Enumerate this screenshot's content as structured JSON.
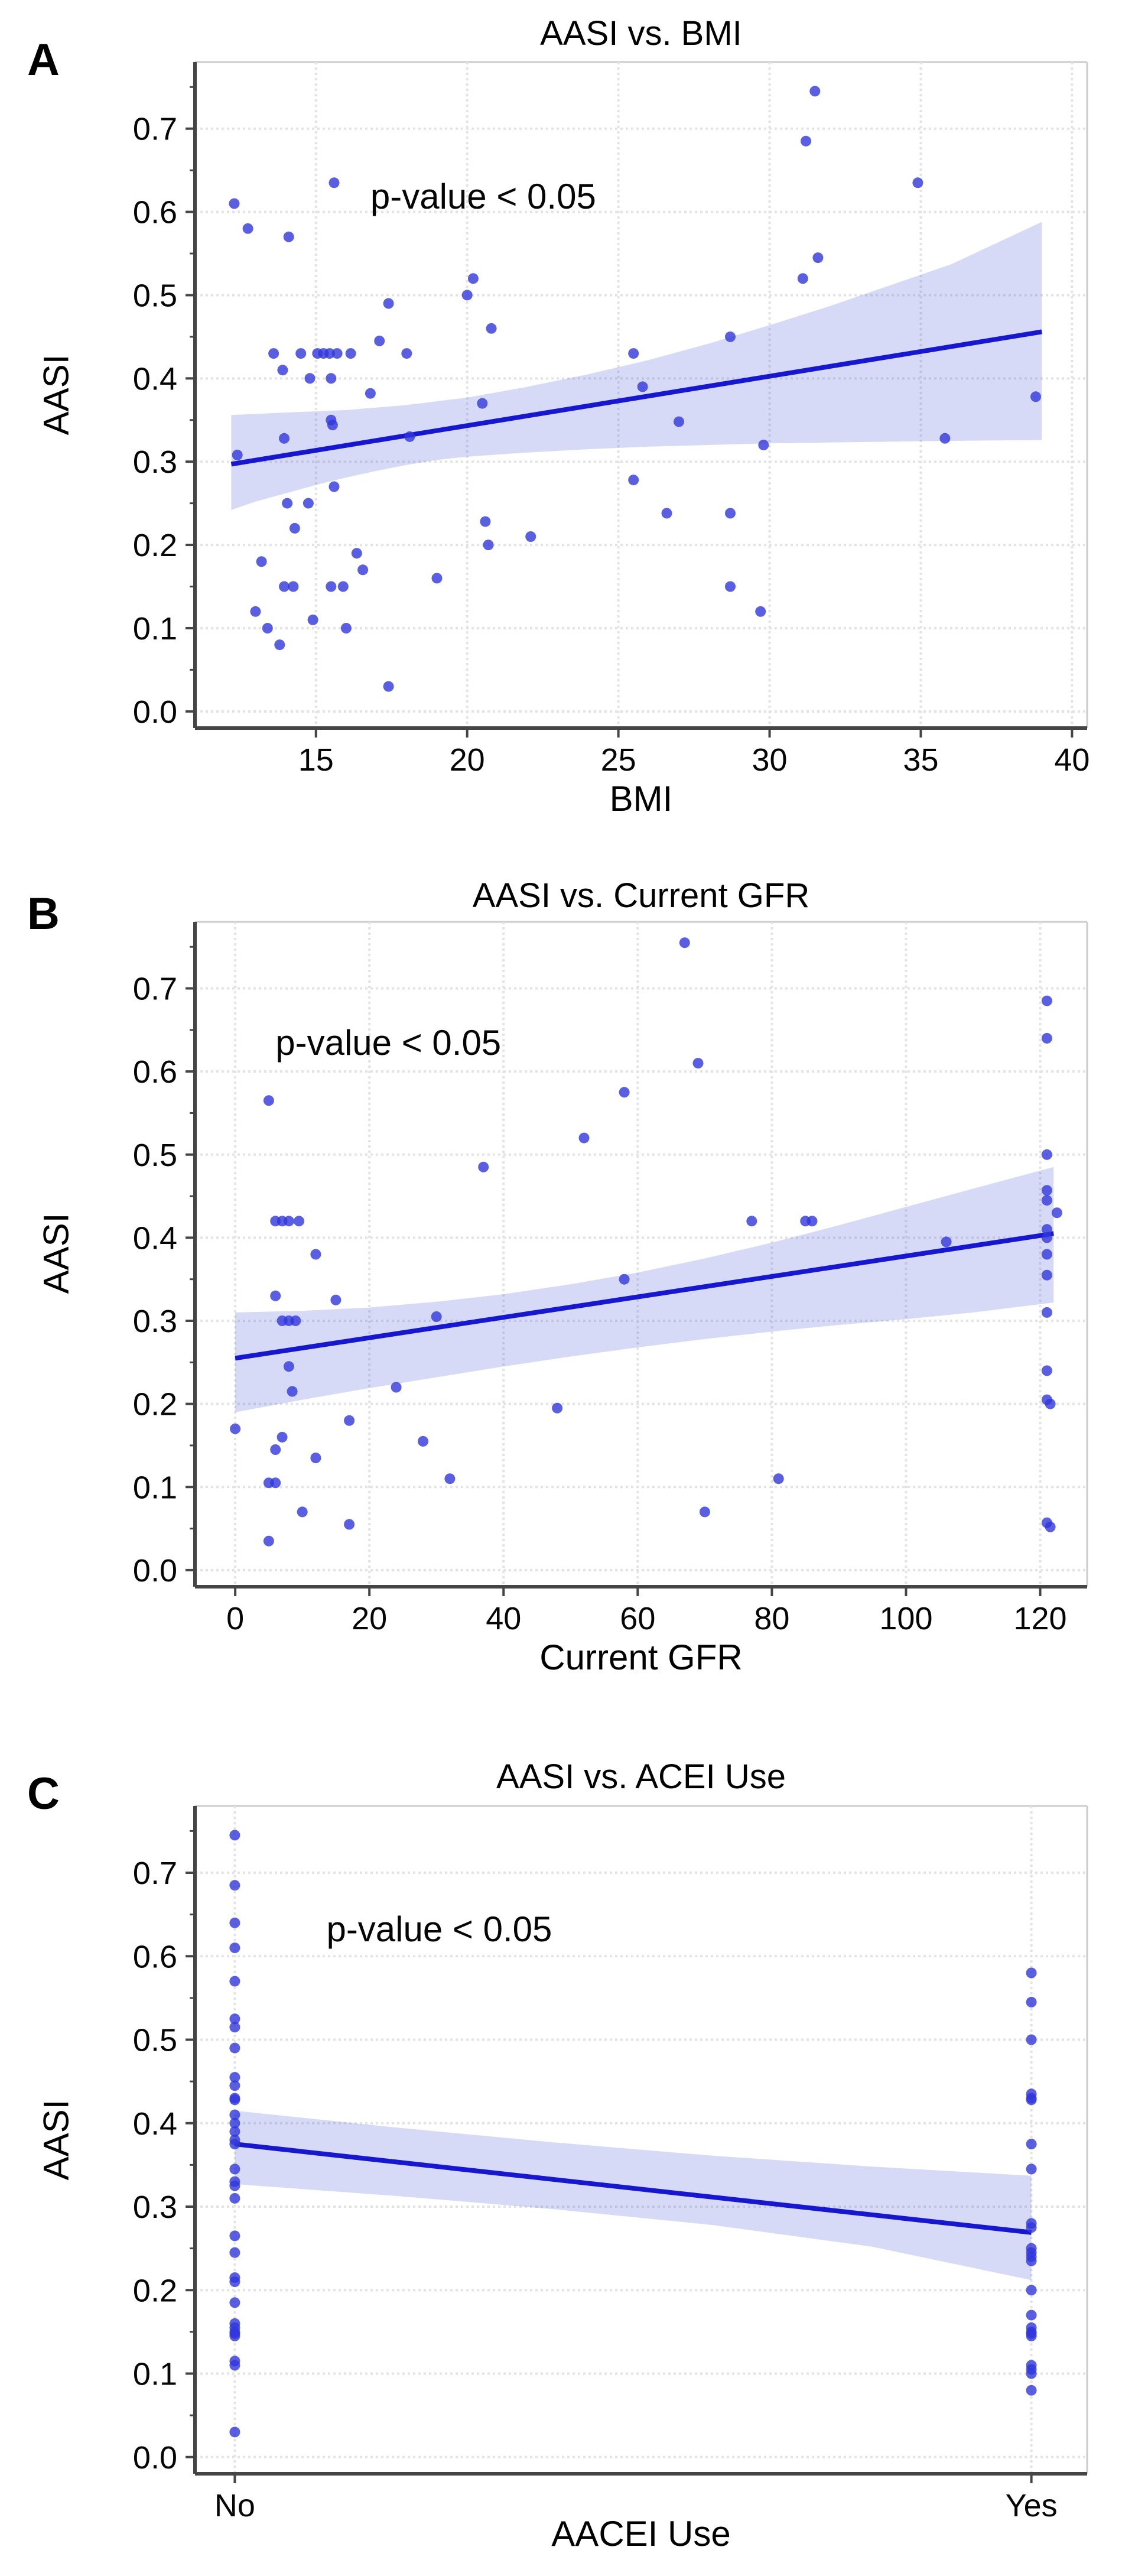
{
  "colors": {
    "point": "rgba(49,55,219,0.8)",
    "regression_line": "#1717cf",
    "ci_band": "rgba(75,85,215,0.22)",
    "grid": "#e3e3e3",
    "spine_dark": "#454545",
    "spine_light": "#cccccc",
    "text": "#050505"
  },
  "chart_data": [
    {
      "type": "scatter",
      "panel_label": "A",
      "title": "AASI vs. BMI",
      "xlabel": "BMI",
      "ylabel": "AASI",
      "annotation": "p-value < 0.05",
      "annotation_pos": [
        16.8,
        0.604
      ],
      "xlim": [
        11,
        40.5
      ],
      "ylim": [
        -0.02,
        0.78
      ],
      "grid": true,
      "legend": "none",
      "xticks": [
        {
          "v": 15,
          "label": "15"
        },
        {
          "v": 20,
          "label": "20"
        },
        {
          "v": 25,
          "label": "25"
        },
        {
          "v": 30,
          "label": "30"
        },
        {
          "v": 35,
          "label": "35"
        },
        {
          "v": 40,
          "label": "40"
        }
      ],
      "yticks": [
        {
          "v": 0.0,
          "label": "0.0"
        },
        {
          "v": 0.1,
          "label": "0.1"
        },
        {
          "v": 0.2,
          "label": "0.2"
        },
        {
          "v": 0.3,
          "label": "0.3"
        },
        {
          "v": 0.4,
          "label": "0.4"
        },
        {
          "v": 0.5,
          "label": "0.5"
        },
        {
          "v": 0.6,
          "label": "0.6"
        },
        {
          "v": 0.7,
          "label": "0.7"
        }
      ],
      "points": [
        [
          12.3,
          0.61
        ],
        [
          12.75,
          0.58
        ],
        [
          14.1,
          0.57
        ],
        [
          15.6,
          0.635
        ],
        [
          31.5,
          0.745
        ],
        [
          31.2,
          0.685
        ],
        [
          34.9,
          0.635
        ],
        [
          31.1,
          0.52
        ],
        [
          31.6,
          0.545
        ],
        [
          20.2,
          0.52
        ],
        [
          20.0,
          0.5
        ],
        [
          17.4,
          0.49
        ],
        [
          20.8,
          0.46
        ],
        [
          17.1,
          0.445
        ],
        [
          13.6,
          0.43
        ],
        [
          14.5,
          0.43
        ],
        [
          15.05,
          0.43
        ],
        [
          15.25,
          0.43
        ],
        [
          15.45,
          0.43
        ],
        [
          15.7,
          0.43
        ],
        [
          16.15,
          0.43
        ],
        [
          18.0,
          0.43
        ],
        [
          25.5,
          0.43
        ],
        [
          13.9,
          0.41
        ],
        [
          14.8,
          0.4
        ],
        [
          15.5,
          0.4
        ],
        [
          25.8,
          0.39
        ],
        [
          28.7,
          0.45
        ],
        [
          16.8,
          0.382
        ],
        [
          20.5,
          0.37
        ],
        [
          38.8,
          0.378
        ],
        [
          27.0,
          0.348
        ],
        [
          15.5,
          0.35
        ],
        [
          15.55,
          0.344
        ],
        [
          18.1,
          0.33
        ],
        [
          13.95,
          0.328
        ],
        [
          35.8,
          0.328
        ],
        [
          29.8,
          0.32
        ],
        [
          12.4,
          0.308
        ],
        [
          15.6,
          0.27
        ],
        [
          25.5,
          0.278
        ],
        [
          14.05,
          0.25
        ],
        [
          14.75,
          0.25
        ],
        [
          14.3,
          0.22
        ],
        [
          20.6,
          0.228
        ],
        [
          26.6,
          0.238
        ],
        [
          28.7,
          0.238
        ],
        [
          22.1,
          0.21
        ],
        [
          20.7,
          0.2
        ],
        [
          16.35,
          0.19
        ],
        [
          13.2,
          0.18
        ],
        [
          16.55,
          0.17
        ],
        [
          19.0,
          0.16
        ],
        [
          13.95,
          0.15
        ],
        [
          14.25,
          0.15
        ],
        [
          15.5,
          0.15
        ],
        [
          15.9,
          0.15
        ],
        [
          28.7,
          0.15
        ],
        [
          13.0,
          0.12
        ],
        [
          29.7,
          0.12
        ],
        [
          14.9,
          0.11
        ],
        [
          13.4,
          0.1
        ],
        [
          16.0,
          0.1
        ],
        [
          13.8,
          0.08
        ],
        [
          17.4,
          0.03
        ]
      ],
      "regression": {
        "x": [
          12.2,
          39.0
        ],
        "y": [
          0.297,
          0.456
        ]
      },
      "ci_upper": [
        [
          12.2,
          0.356
        ],
        [
          14,
          0.359
        ],
        [
          16,
          0.362
        ],
        [
          18,
          0.368
        ],
        [
          20,
          0.377
        ],
        [
          22,
          0.39
        ],
        [
          24,
          0.405
        ],
        [
          26,
          0.422
        ],
        [
          28,
          0.442
        ],
        [
          30,
          0.464
        ],
        [
          32,
          0.487
        ],
        [
          34,
          0.512
        ],
        [
          36,
          0.537
        ],
        [
          39,
          0.588
        ]
      ],
      "ci_lower": [
        [
          12.2,
          0.242
        ],
        [
          13,
          0.252
        ],
        [
          14,
          0.262
        ],
        [
          15,
          0.272
        ],
        [
          16,
          0.281
        ],
        [
          17,
          0.289
        ],
        [
          18,
          0.296
        ],
        [
          19,
          0.302
        ],
        [
          20,
          0.306
        ],
        [
          22,
          0.311
        ],
        [
          24,
          0.315
        ],
        [
          26,
          0.318
        ],
        [
          28,
          0.32
        ],
        [
          30,
          0.322
        ],
        [
          32,
          0.323
        ],
        [
          34,
          0.324
        ],
        [
          36,
          0.325
        ],
        [
          39,
          0.326
        ]
      ]
    },
    {
      "type": "scatter",
      "panel_label": "B",
      "title": "AASI vs. Current GFR",
      "xlabel": "Current GFR",
      "ylabel": "AASI",
      "annotation": "p-value < 0.05",
      "annotation_pos": [
        6,
        0.62
      ],
      "xlim": [
        -6,
        127
      ],
      "ylim": [
        -0.02,
        0.78
      ],
      "grid": true,
      "legend": "none",
      "xticks": [
        {
          "v": 0,
          "label": "0"
        },
        {
          "v": 20,
          "label": "20"
        },
        {
          "v": 40,
          "label": "40"
        },
        {
          "v": 60,
          "label": "60"
        },
        {
          "v": 80,
          "label": "80"
        },
        {
          "v": 100,
          "label": "100"
        },
        {
          "v": 120,
          "label": "120"
        }
      ],
      "yticks": [
        {
          "v": 0.0,
          "label": "0.0"
        },
        {
          "v": 0.1,
          "label": "0.1"
        },
        {
          "v": 0.2,
          "label": "0.2"
        },
        {
          "v": 0.3,
          "label": "0.3"
        },
        {
          "v": 0.4,
          "label": "0.4"
        },
        {
          "v": 0.5,
          "label": "0.5"
        },
        {
          "v": 0.6,
          "label": "0.6"
        },
        {
          "v": 0.7,
          "label": "0.7"
        }
      ],
      "points": [
        [
          67,
          0.755
        ],
        [
          121,
          0.685
        ],
        [
          121,
          0.64
        ],
        [
          69,
          0.61
        ],
        [
          58,
          0.575
        ],
        [
          5,
          0.565
        ],
        [
          52,
          0.52
        ],
        [
          37,
          0.485
        ],
        [
          121,
          0.5
        ],
        [
          121,
          0.457
        ],
        [
          121,
          0.445
        ],
        [
          122.5,
          0.43
        ],
        [
          6,
          0.42
        ],
        [
          7,
          0.42
        ],
        [
          8,
          0.42
        ],
        [
          9.5,
          0.42
        ],
        [
          77,
          0.42
        ],
        [
          85,
          0.42
        ],
        [
          86,
          0.42
        ],
        [
          121,
          0.41
        ],
        [
          121,
          0.4
        ],
        [
          12,
          0.38
        ],
        [
          106,
          0.395
        ],
        [
          121,
          0.38
        ],
        [
          121,
          0.355
        ],
        [
          58,
          0.35
        ],
        [
          6,
          0.33
        ],
        [
          15,
          0.325
        ],
        [
          121,
          0.31
        ],
        [
          7,
          0.3
        ],
        [
          8,
          0.3
        ],
        [
          9,
          0.3
        ],
        [
          30,
          0.305
        ],
        [
          121,
          0.24
        ],
        [
          8,
          0.245
        ],
        [
          8.5,
          0.215
        ],
        [
          24,
          0.22
        ],
        [
          48,
          0.195
        ],
        [
          121,
          0.205
        ],
        [
          121.5,
          0.2
        ],
        [
          17,
          0.18
        ],
        [
          0,
          0.17
        ],
        [
          7,
          0.16
        ],
        [
          28,
          0.155
        ],
        [
          6,
          0.145
        ],
        [
          12,
          0.135
        ],
        [
          5,
          0.105
        ],
        [
          6,
          0.105
        ],
        [
          32,
          0.11
        ],
        [
          81,
          0.11
        ],
        [
          10,
          0.07
        ],
        [
          70,
          0.07
        ],
        [
          17,
          0.055
        ],
        [
          121,
          0.057
        ],
        [
          121.5,
          0.052
        ],
        [
          5,
          0.035
        ]
      ],
      "regression": {
        "x": [
          0,
          122
        ],
        "y": [
          0.255,
          0.405
        ]
      },
      "ci_upper": [
        [
          0,
          0.31
        ],
        [
          10,
          0.312
        ],
        [
          20,
          0.316
        ],
        [
          30,
          0.323
        ],
        [
          40,
          0.332
        ],
        [
          50,
          0.344
        ],
        [
          60,
          0.358
        ],
        [
          70,
          0.375
        ],
        [
          80,
          0.394
        ],
        [
          90,
          0.415
        ],
        [
          100,
          0.437
        ],
        [
          110,
          0.459
        ],
        [
          122,
          0.485
        ]
      ],
      "ci_lower": [
        [
          0,
          0.19
        ],
        [
          10,
          0.205
        ],
        [
          20,
          0.219
        ],
        [
          30,
          0.232
        ],
        [
          40,
          0.245
        ],
        [
          50,
          0.257
        ],
        [
          60,
          0.268
        ],
        [
          70,
          0.278
        ],
        [
          80,
          0.287
        ],
        [
          90,
          0.295
        ],
        [
          100,
          0.302
        ],
        [
          110,
          0.31
        ],
        [
          122,
          0.322
        ]
      ]
    },
    {
      "type": "scatter",
      "panel_label": "C",
      "title": "AASI vs. ACEI Use",
      "xlabel": "AACEI Use",
      "ylabel": "AASI",
      "annotation": "p-value < 0.05",
      "annotation_pos": [
        0.115,
        0.618
      ],
      "xlim": [
        -0.05,
        1.07
      ],
      "ylim": [
        -0.02,
        0.78
      ],
      "grid": true,
      "legend": "none",
      "xticks": [
        {
          "v": 0,
          "label": "No"
        },
        {
          "v": 1,
          "label": "Yes"
        }
      ],
      "yticks": [
        {
          "v": 0.0,
          "label": "0.0"
        },
        {
          "v": 0.1,
          "label": "0.1"
        },
        {
          "v": 0.2,
          "label": "0.2"
        },
        {
          "v": 0.3,
          "label": "0.3"
        },
        {
          "v": 0.4,
          "label": "0.4"
        },
        {
          "v": 0.5,
          "label": "0.5"
        },
        {
          "v": 0.6,
          "label": "0.6"
        },
        {
          "v": 0.7,
          "label": "0.7"
        }
      ],
      "points": [
        [
          0,
          0.745
        ],
        [
          0,
          0.685
        ],
        [
          0,
          0.64
        ],
        [
          0,
          0.61
        ],
        [
          0,
          0.57
        ],
        [
          0,
          0.525
        ],
        [
          0,
          0.515
        ],
        [
          0,
          0.49
        ],
        [
          0,
          0.455
        ],
        [
          0,
          0.445
        ],
        [
          0,
          0.43
        ],
        [
          0,
          0.428
        ],
        [
          0,
          0.41
        ],
        [
          0,
          0.4
        ],
        [
          0,
          0.39
        ],
        [
          0,
          0.38
        ],
        [
          0,
          0.375
        ],
        [
          0,
          0.345
        ],
        [
          0,
          0.33
        ],
        [
          0,
          0.325
        ],
        [
          0,
          0.31
        ],
        [
          0,
          0.265
        ],
        [
          0,
          0.245
        ],
        [
          0,
          0.215
        ],
        [
          0,
          0.21
        ],
        [
          0,
          0.185
        ],
        [
          0,
          0.16
        ],
        [
          0,
          0.155
        ],
        [
          0,
          0.15
        ],
        [
          0,
          0.148
        ],
        [
          0,
          0.145
        ],
        [
          0,
          0.115
        ],
        [
          0,
          0.11
        ],
        [
          0,
          0.03
        ],
        [
          1,
          0.58
        ],
        [
          1,
          0.545
        ],
        [
          1,
          0.5
        ],
        [
          1,
          0.435
        ],
        [
          1,
          0.43
        ],
        [
          1,
          0.428
        ],
        [
          1,
          0.375
        ],
        [
          1,
          0.345
        ],
        [
          1,
          0.28
        ],
        [
          1,
          0.275
        ],
        [
          1,
          0.25
        ],
        [
          1,
          0.245
        ],
        [
          1,
          0.24
        ],
        [
          1,
          0.235
        ],
        [
          1,
          0.2
        ],
        [
          1,
          0.17
        ],
        [
          1,
          0.155
        ],
        [
          1,
          0.15
        ],
        [
          1,
          0.148
        ],
        [
          1,
          0.145
        ],
        [
          1,
          0.11
        ],
        [
          1,
          0.105
        ],
        [
          1,
          0.1
        ],
        [
          1,
          0.08
        ]
      ],
      "regression": {
        "x": [
          0,
          1
        ],
        "y": [
          0.375,
          0.269
        ]
      },
      "ci_upper": [
        [
          0,
          0.415
        ],
        [
          0.2,
          0.395
        ],
        [
          0.4,
          0.377
        ],
        [
          0.6,
          0.361
        ],
        [
          0.8,
          0.348
        ],
        [
          1,
          0.337
        ]
      ],
      "ci_lower": [
        [
          0,
          0.327
        ],
        [
          0.2,
          0.313
        ],
        [
          0.4,
          0.297
        ],
        [
          0.6,
          0.278
        ],
        [
          0.8,
          0.252
        ],
        [
          1,
          0.212
        ]
      ]
    }
  ]
}
